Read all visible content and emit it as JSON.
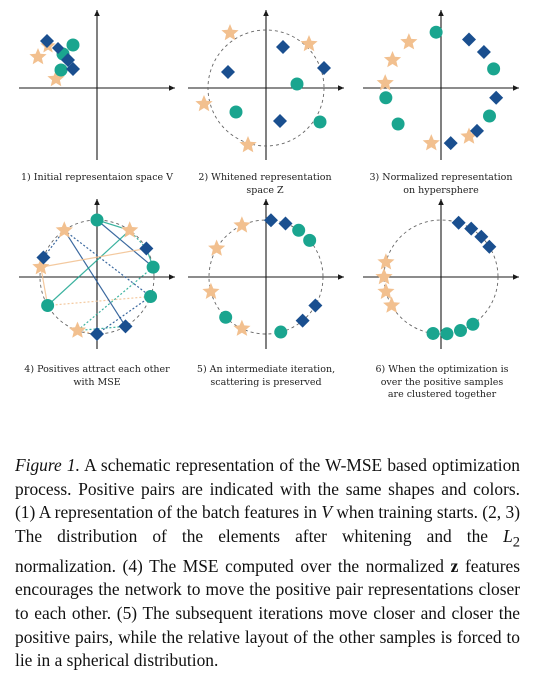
{
  "colors": {
    "star": "#f2c08f",
    "diamond": "#1a4f8f",
    "circle": "#1aa58f",
    "axis": "#1a1a1a",
    "dashed": "#666666"
  },
  "icons": {
    "star": "star-icon",
    "diamond": "diamond-icon",
    "circle": "circle-icon"
  },
  "panels": [
    {
      "caption": "1) Initial representaion space V"
    },
    {
      "caption": "2) Whitened representation space Z"
    },
    {
      "caption": "3) Normalized representation on hypersphere"
    },
    {
      "caption": "4) Positives attract each other with MSE"
    },
    {
      "caption": "5) An intermediate iteration, scattering is preserved"
    },
    {
      "caption": "6) When the optimization is over the positive samples are clustered together"
    }
  ],
  "caption": {
    "label": "Figure 1.",
    "part1": " A schematic representation of the W-MSE based optimization process. Positive pairs are indicated with the same shapes and colors. (1) A representation of the batch features in ",
    "var_v": "V",
    "part2": " when training starts. (2, 3) The distribution of the elements after whitening and the ",
    "l2_base": "L",
    "l2_sub": "2",
    "part3": " normalization. (4) The MSE computed over the normalized ",
    "bold_z": "z",
    "part4": " features encourages the network to move the positive pair representations closer to each other. (5) The subsequent iterations move closer and closer the positive pairs, while the relative layout of the other samples is forced to lie in a spherical distribution."
  }
}
